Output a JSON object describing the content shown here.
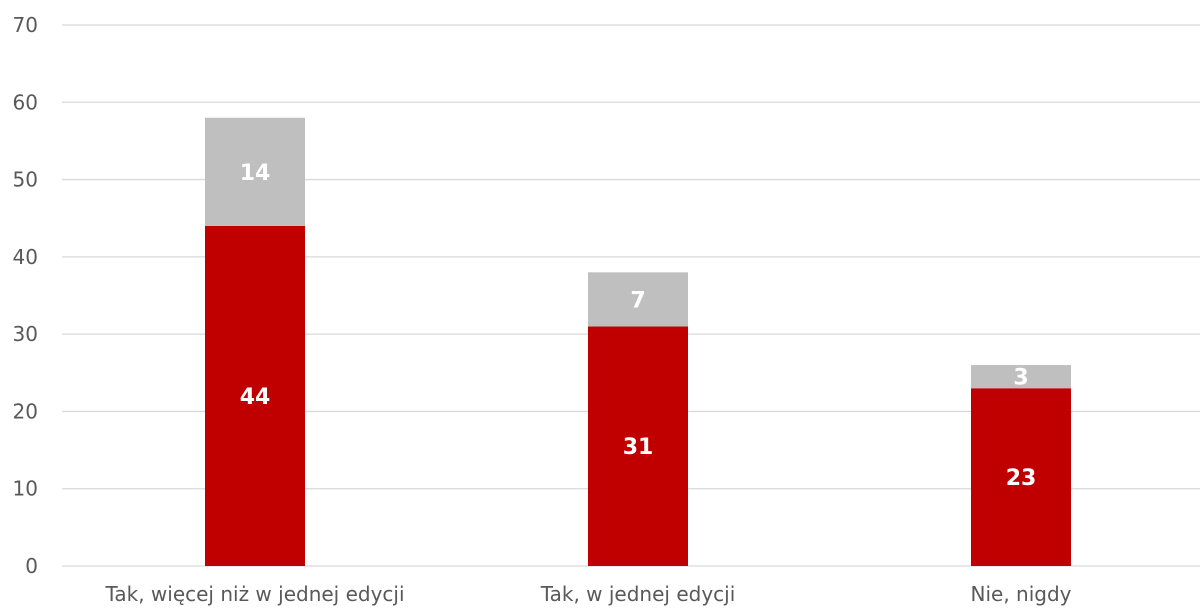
{
  "chart_data": {
    "type": "bar",
    "stacked": true,
    "categories": [
      "Tak, więcej niż w jednej edycji",
      "Tak, w jednej edycji",
      "Nie, nigdy"
    ],
    "series": [
      {
        "values": [
          44,
          31,
          23
        ],
        "color": "#c00000"
      },
      {
        "values": [
          14,
          7,
          3
        ],
        "color": "#bfbfbf"
      }
    ],
    "title": "",
    "xlabel": "",
    "ylabel": "",
    "ylim": [
      0,
      70
    ],
    "yticks": [
      0,
      10,
      20,
      30,
      40,
      50,
      60,
      70
    ],
    "grid": true,
    "legend": "none"
  }
}
